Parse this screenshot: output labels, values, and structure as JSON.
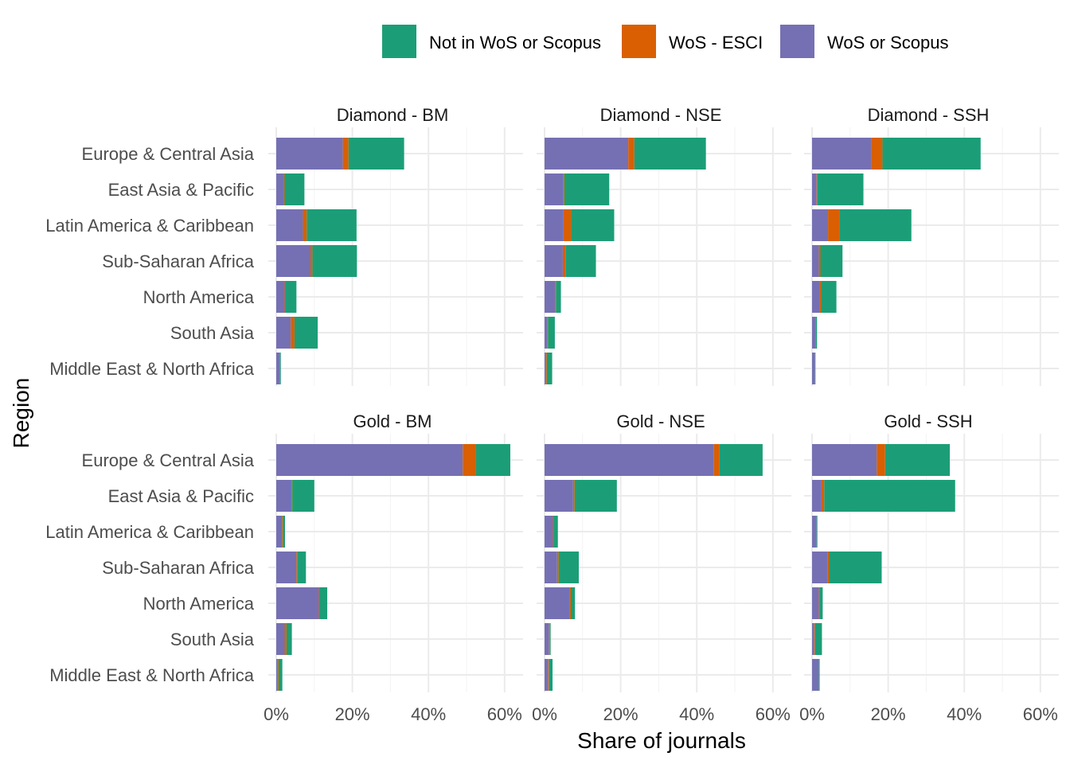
{
  "chart_data": {
    "type": "bar",
    "orientation": "horizontal",
    "stacked": true,
    "xlabel": "Share of journals",
    "ylabel": "Region",
    "xlim": [
      0,
      0.65
    ],
    "x_ticks": [
      0,
      0.2,
      0.4,
      0.6
    ],
    "x_tick_labels": [
      "0%",
      "20%",
      "40%",
      "60%"
    ],
    "grid": true,
    "legend_position": "top",
    "categories": [
      "Europe & Central Asia",
      "East Asia & Pacific",
      "Latin America & Caribbean",
      "Sub-Saharan Africa",
      "North America",
      "South Asia",
      "Middle East & North Africa"
    ],
    "series": [
      {
        "name": "WoS or Scopus",
        "color": "#7570b3"
      },
      {
        "name": "WoS - ESCI",
        "color": "#d95f02"
      },
      {
        "name": "Not in WoS or Scopus",
        "color": "#1b9e77"
      }
    ],
    "legend_order": [
      "Not in WoS or Scopus",
      "WoS - ESCI",
      "WoS or Scopus"
    ],
    "panels": [
      {
        "title": "Diamond - BM",
        "values": {
          "WoS or Scopus": [
            0.175,
            0.02,
            0.07,
            0.09,
            0.022,
            0.038,
            0.01
          ],
          "WoS - ESCI": [
            0.015,
            0.002,
            0.01,
            0.005,
            0.002,
            0.01,
            0.0
          ],
          "Not in WoS or Scopus": [
            0.146,
            0.052,
            0.131,
            0.117,
            0.029,
            0.061,
            0.002
          ]
        }
      },
      {
        "title": "Diamond - NSE",
        "values": {
          "WoS or Scopus": [
            0.22,
            0.05,
            0.05,
            0.048,
            0.028,
            0.008,
            0.004
          ],
          "WoS - ESCI": [
            0.016,
            0.002,
            0.02,
            0.007,
            0.002,
            0.001,
            0.002
          ],
          "Not in WoS or Scopus": [
            0.188,
            0.118,
            0.113,
            0.08,
            0.013,
            0.018,
            0.014
          ]
        }
      },
      {
        "title": "Diamond - SSH",
        "values": {
          "WoS or Scopus": [
            0.155,
            0.012,
            0.042,
            0.018,
            0.02,
            0.01,
            0.008
          ],
          "WoS - ESCI": [
            0.03,
            0.002,
            0.03,
            0.004,
            0.004,
            0.0,
            0.0
          ],
          "Not in WoS or Scopus": [
            0.258,
            0.121,
            0.189,
            0.058,
            0.04,
            0.003,
            0.001
          ]
        }
      },
      {
        "title": "Gold - BM",
        "values": {
          "WoS or Scopus": [
            0.49,
            0.04,
            0.015,
            0.053,
            0.112,
            0.022,
            0.004
          ],
          "WoS - ESCI": [
            0.035,
            0.002,
            0.002,
            0.002,
            0.002,
            0.005,
            0.002
          ],
          "Not in WoS or Scopus": [
            0.09,
            0.058,
            0.006,
            0.023,
            0.02,
            0.014,
            0.01
          ]
        }
      },
      {
        "title": "Gold - NSE",
        "values": {
          "WoS or Scopus": [
            0.445,
            0.075,
            0.022,
            0.033,
            0.065,
            0.012,
            0.01
          ],
          "WoS - ESCI": [
            0.015,
            0.004,
            0.002,
            0.004,
            0.004,
            0.002,
            0.002
          ],
          "Not in WoS or Scopus": [
            0.113,
            0.111,
            0.011,
            0.053,
            0.011,
            0.002,
            0.009
          ]
        }
      },
      {
        "title": "Gold - SSH",
        "values": {
          "WoS or Scopus": [
            0.17,
            0.025,
            0.012,
            0.04,
            0.018,
            0.006,
            0.018
          ],
          "WoS - ESCI": [
            0.022,
            0.007,
            0.0,
            0.005,
            0.002,
            0.002,
            0.0
          ],
          "Not in WoS or Scopus": [
            0.17,
            0.344,
            0.002,
            0.138,
            0.008,
            0.018,
            0.002
          ]
        }
      }
    ]
  }
}
